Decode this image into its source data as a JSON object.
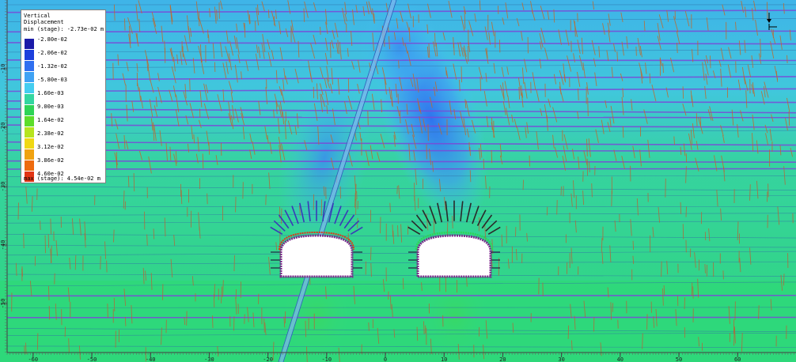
{
  "legend": {
    "title_line1": "Vertical",
    "title_line2": "Displacement",
    "min_text": "min (stage): -2.73e-02 m",
    "max_text": "max (stage): 4.54e-02 m",
    "labels": [
      "-2.80e-02",
      "-2.06e-02",
      "-1.32e-02",
      "-5.80e-03",
      "1.60e-03",
      "9.00e-03",
      "1.64e-02",
      "2.38e-02",
      "3.12e-02",
      "3.86e-02",
      "4.60e-02"
    ],
    "colors": [
      "#1a1aa8",
      "#1d3fdc",
      "#2f6ff0",
      "#3fa2f4",
      "#44cdf0",
      "#33d6a0",
      "#2ed456",
      "#5cdd2a",
      "#b6e41e",
      "#f0d814",
      "#f0a210",
      "#ee6a0e",
      "#e23414"
    ]
  },
  "x_axis": {
    "ticks": [
      "-60",
      "-50",
      "-40",
      "-30",
      "-20",
      "-10",
      "0",
      "10",
      "20",
      "30",
      "40",
      "50",
      "60"
    ]
  },
  "y_axis": {
    "ticks": [
      "-10",
      "-20",
      "-30",
      "-40",
      "-50"
    ]
  },
  "colors": {
    "background_green": "#33d67e",
    "background_cyan": "#41c8dc",
    "displacement_blue": "#3a8df0",
    "joint_lines": "#c0692a",
    "bedding_lines": "#7a49d8",
    "bolt_lines": "#1e1e80"
  },
  "icons": [
    "north-arrow-icon"
  ]
}
